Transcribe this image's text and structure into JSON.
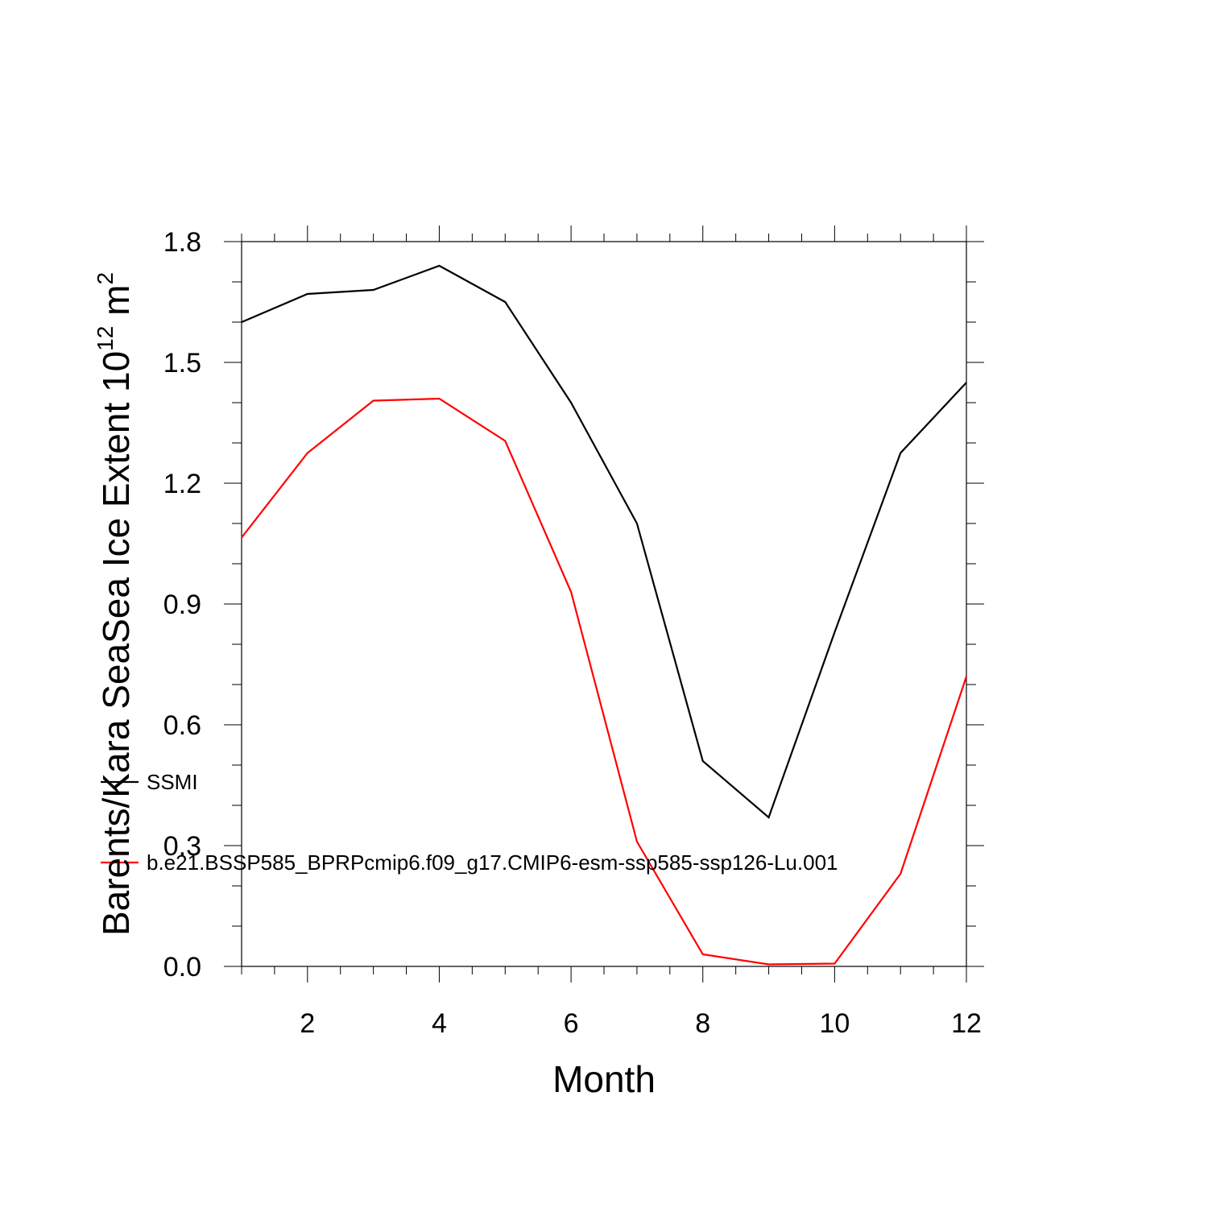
{
  "chart_data": {
    "type": "line",
    "xlabel": "Month",
    "ylabel_main": "Barents/Kara SeaSea Ice Extent 10",
    "ylabel_exp": "12",
    "ylabel_unit": " m",
    "ylabel_unit_exp": "2",
    "xlim": [
      1,
      12
    ],
    "ylim": [
      0,
      1.8
    ],
    "x_ticks": [
      2,
      4,
      6,
      8,
      10,
      12
    ],
    "y_ticks": [
      0.0,
      0.3,
      0.6,
      0.9,
      1.2,
      1.5,
      1.8
    ],
    "y_tick_labels": [
      "0.0",
      "0.3",
      "0.6",
      "0.9",
      "1.2",
      "1.5",
      "1.8"
    ],
    "x": [
      1,
      2,
      3,
      4,
      5,
      6,
      7,
      8,
      9,
      10,
      11,
      12
    ],
    "series": [
      {
        "name": "SSMI",
        "color": "#000000",
        "values": [
          1.6,
          1.67,
          1.68,
          1.74,
          1.65,
          1.4,
          1.1,
          0.51,
          0.37,
          0.83,
          1.275,
          1.45
        ]
      },
      {
        "name": "b.e21.BSSP585_BPRPcmip6.f09_g17.CMIP6-esm-ssp585-ssp126-Lu.001",
        "color": "#ff0000",
        "values": [
          1.065,
          1.275,
          1.405,
          1.41,
          1.305,
          0.93,
          0.31,
          0.03,
          0.005,
          0.007,
          0.23,
          0.72
        ]
      }
    ],
    "grid": false,
    "legend_position": "lower-left"
  }
}
